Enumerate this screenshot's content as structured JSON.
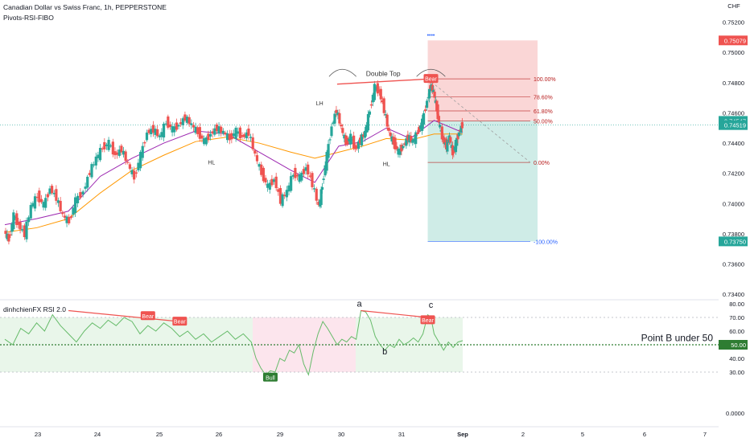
{
  "header": {
    "title": "Canadian Dollar vs Swiss Franc, 1h, PEPPERSTONE",
    "indicator": "Pivots-RSI-FIBO",
    "currency": "CHF"
  },
  "colors": {
    "bull": "#26a69a",
    "bear": "#ef5350",
    "ma_fast": "#9c27b0",
    "ma_slow": "#ff9800",
    "fib": "#b71c1c",
    "target": "#2962ff"
  },
  "chart_data": [
    {
      "type": "candlestick",
      "title": "Canadian Dollar vs Swiss Franc, 1h, PEPPERSTONE",
      "x_ticks": [
        "23",
        "24",
        "25",
        "26",
        "29",
        "30",
        "31",
        "Sep",
        "2",
        "5",
        "6",
        "7"
      ],
      "ylim": [
        0.7338,
        0.7524
      ],
      "y_ticks": [
        "0.75200",
        "0.75000",
        "0.74800",
        "0.74600",
        "0.74400",
        "0.74200",
        "0.74000",
        "0.73800",
        "0.73600",
        "0.73400"
      ],
      "price_labels": {
        "stop": "0.75079",
        "last": "0.74519",
        "hidden": "0.74547",
        "target": "0.73750"
      },
      "stop_level": 0.75079,
      "entry_level": 0.74547,
      "last_price": 0.74519,
      "target_level": 0.7375,
      "series_points": [
        {
          "x": 0,
          "y": 0.7382
        },
        {
          "x": 3,
          "y": 0.7376
        },
        {
          "x": 6,
          "y": 0.7392
        },
        {
          "x": 9,
          "y": 0.7386
        },
        {
          "x": 13,
          "y": 0.738
        },
        {
          "x": 17,
          "y": 0.7398
        },
        {
          "x": 21,
          "y": 0.7405
        },
        {
          "x": 25,
          "y": 0.7399
        },
        {
          "x": 29,
          "y": 0.741
        },
        {
          "x": 33,
          "y": 0.7404
        },
        {
          "x": 37,
          "y": 0.7392
        },
        {
          "x": 41,
          "y": 0.7388
        },
        {
          "x": 45,
          "y": 0.7402
        },
        {
          "x": 50,
          "y": 0.7408
        },
        {
          "x": 54,
          "y": 0.7421
        },
        {
          "x": 58,
          "y": 0.743
        },
        {
          "x": 62,
          "y": 0.7437
        },
        {
          "x": 66,
          "y": 0.744
        },
        {
          "x": 70,
          "y": 0.7432
        },
        {
          "x": 74,
          "y": 0.7436
        },
        {
          "x": 78,
          "y": 0.7426
        },
        {
          "x": 82,
          "y": 0.7417
        },
        {
          "x": 86,
          "y": 0.7432
        },
        {
          "x": 90,
          "y": 0.7447
        },
        {
          "x": 94,
          "y": 0.7449
        },
        {
          "x": 98,
          "y": 0.7444
        },
        {
          "x": 102,
          "y": 0.7454
        },
        {
          "x": 106,
          "y": 0.7449
        },
        {
          "x": 110,
          "y": 0.7452
        },
        {
          "x": 114,
          "y": 0.7457
        },
        {
          "x": 118,
          "y": 0.7452
        },
        {
          "x": 122,
          "y": 0.7447
        },
        {
          "x": 126,
          "y": 0.7441
        },
        {
          "x": 130,
          "y": 0.7446
        },
        {
          "x": 134,
          "y": 0.745
        },
        {
          "x": 138,
          "y": 0.7447
        },
        {
          "x": 142,
          "y": 0.7443
        },
        {
          "x": 146,
          "y": 0.7448
        },
        {
          "x": 150,
          "y": 0.7444
        },
        {
          "x": 154,
          "y": 0.7447
        },
        {
          "x": 158,
          "y": 0.7432
        },
        {
          "x": 162,
          "y": 0.742
        },
        {
          "x": 166,
          "y": 0.7411
        },
        {
          "x": 170,
          "y": 0.7416
        },
        {
          "x": 174,
          "y": 0.7402
        },
        {
          "x": 178,
          "y": 0.7408
        },
        {
          "x": 182,
          "y": 0.742
        },
        {
          "x": 186,
          "y": 0.7417
        },
        {
          "x": 190,
          "y": 0.7424
        },
        {
          "x": 194,
          "y": 0.7413
        },
        {
          "x": 198,
          "y": 0.7398
        },
        {
          "x": 200,
          "y": 0.7412
        },
        {
          "x": 203,
          "y": 0.7432
        },
        {
          "x": 206,
          "y": 0.7451
        },
        {
          "x": 209,
          "y": 0.7462
        },
        {
          "x": 212,
          "y": 0.745
        },
        {
          "x": 215,
          "y": 0.744
        },
        {
          "x": 218,
          "y": 0.7444
        },
        {
          "x": 221,
          "y": 0.7436
        },
        {
          "x": 224,
          "y": 0.7442
        },
        {
          "x": 227,
          "y": 0.7447
        },
        {
          "x": 230,
          "y": 0.7462
        },
        {
          "x": 233,
          "y": 0.7477
        },
        {
          "x": 236,
          "y": 0.7474
        },
        {
          "x": 239,
          "y": 0.7462
        },
        {
          "x": 242,
          "y": 0.7447
        },
        {
          "x": 245,
          "y": 0.744
        },
        {
          "x": 248,
          "y": 0.7434
        },
        {
          "x": 251,
          "y": 0.7438
        },
        {
          "x": 254,
          "y": 0.7444
        },
        {
          "x": 257,
          "y": 0.7441
        },
        {
          "x": 260,
          "y": 0.7447
        },
        {
          "x": 263,
          "y": 0.7454
        },
        {
          "x": 266,
          "y": 0.7468
        },
        {
          "x": 268,
          "y": 0.7478
        },
        {
          "x": 270,
          "y": 0.7474
        },
        {
          "x": 272,
          "y": 0.7462
        },
        {
          "x": 274,
          "y": 0.745
        },
        {
          "x": 276,
          "y": 0.7442
        },
        {
          "x": 278,
          "y": 0.7438
        },
        {
          "x": 280,
          "y": 0.7444
        },
        {
          "x": 282,
          "y": 0.7433
        },
        {
          "x": 284,
          "y": 0.744
        },
        {
          "x": 286,
          "y": 0.7447
        },
        {
          "x": 288,
          "y": 0.7452
        }
      ],
      "ma_fast": [
        {
          "x": 0,
          "y": 0.7386
        },
        {
          "x": 20,
          "y": 0.739
        },
        {
          "x": 40,
          "y": 0.7395
        },
        {
          "x": 60,
          "y": 0.7418
        },
        {
          "x": 80,
          "y": 0.743
        },
        {
          "x": 100,
          "y": 0.744
        },
        {
          "x": 120,
          "y": 0.7448
        },
        {
          "x": 140,
          "y": 0.7446
        },
        {
          "x": 160,
          "y": 0.7434
        },
        {
          "x": 180,
          "y": 0.7422
        },
        {
          "x": 195,
          "y": 0.7414
        },
        {
          "x": 210,
          "y": 0.7438
        },
        {
          "x": 225,
          "y": 0.7441
        },
        {
          "x": 240,
          "y": 0.745
        },
        {
          "x": 255,
          "y": 0.7443
        },
        {
          "x": 270,
          "y": 0.7455
        },
        {
          "x": 288,
          "y": 0.7447
        }
      ],
      "ma_slow": [
        {
          "x": 0,
          "y": 0.7381
        },
        {
          "x": 20,
          "y": 0.7384
        },
        {
          "x": 40,
          "y": 0.739
        },
        {
          "x": 60,
          "y": 0.7407
        },
        {
          "x": 80,
          "y": 0.7422
        },
        {
          "x": 100,
          "y": 0.7432
        },
        {
          "x": 120,
          "y": 0.7441
        },
        {
          "x": 140,
          "y": 0.7444
        },
        {
          "x": 160,
          "y": 0.744
        },
        {
          "x": 180,
          "y": 0.7434
        },
        {
          "x": 195,
          "y": 0.743
        },
        {
          "x": 210,
          "y": 0.7434
        },
        {
          "x": 225,
          "y": 0.7438
        },
        {
          "x": 240,
          "y": 0.7443
        },
        {
          "x": 255,
          "y": 0.7442
        },
        {
          "x": 270,
          "y": 0.7446
        },
        {
          "x": 288,
          "y": 0.7446
        }
      ],
      "fib_levels": [
        {
          "label": "100.00%",
          "value": 0.74825
        },
        {
          "label": "78.60%",
          "value": 0.74705
        },
        {
          "label": "61.80%",
          "value": 0.74613
        },
        {
          "label": "50.00%",
          "value": 0.74547
        },
        {
          "label": "0.00%",
          "value": 0.74272
        },
        {
          "label": "-100.00%",
          "value": 0.7375
        }
      ],
      "annotations": [
        {
          "text": "Double Top"
        },
        {
          "text": "LH"
        },
        {
          "text": "HL"
        },
        {
          "text": "HL"
        }
      ],
      "signals": [
        {
          "text": "Bear"
        }
      ]
    },
    {
      "type": "line",
      "title": "dinhchienFX RSI 2.0",
      "ylim": [
        0,
        80
      ],
      "y_ticks": [
        "80.00",
        "70.00",
        "60.00",
        "40.00",
        "30.00",
        "0.0000"
      ],
      "level_label": "50.00",
      "overbought": 70,
      "midline": 50,
      "oversold": 30,
      "series_points": [
        {
          "x": 0,
          "y": 54
        },
        {
          "x": 5,
          "y": 50
        },
        {
          "x": 10,
          "y": 62
        },
        {
          "x": 15,
          "y": 58
        },
        {
          "x": 20,
          "y": 66
        },
        {
          "x": 25,
          "y": 60
        },
        {
          "x": 30,
          "y": 72
        },
        {
          "x": 35,
          "y": 64
        },
        {
          "x": 40,
          "y": 58
        },
        {
          "x": 45,
          "y": 52
        },
        {
          "x": 50,
          "y": 60
        },
        {
          "x": 55,
          "y": 66
        },
        {
          "x": 60,
          "y": 62
        },
        {
          "x": 65,
          "y": 68
        },
        {
          "x": 70,
          "y": 64
        },
        {
          "x": 75,
          "y": 70
        },
        {
          "x": 80,
          "y": 67
        },
        {
          "x": 85,
          "y": 58
        },
        {
          "x": 90,
          "y": 64
        },
        {
          "x": 95,
          "y": 60
        },
        {
          "x": 100,
          "y": 66
        },
        {
          "x": 105,
          "y": 62
        },
        {
          "x": 110,
          "y": 56
        },
        {
          "x": 115,
          "y": 60
        },
        {
          "x": 120,
          "y": 54
        },
        {
          "x": 125,
          "y": 58
        },
        {
          "x": 130,
          "y": 52
        },
        {
          "x": 135,
          "y": 56
        },
        {
          "x": 140,
          "y": 60
        },
        {
          "x": 145,
          "y": 54
        },
        {
          "x": 150,
          "y": 58
        },
        {
          "x": 155,
          "y": 52
        },
        {
          "x": 158,
          "y": 40
        },
        {
          "x": 161,
          "y": 33
        },
        {
          "x": 164,
          "y": 28
        },
        {
          "x": 167,
          "y": 31
        },
        {
          "x": 170,
          "y": 30
        },
        {
          "x": 173,
          "y": 40
        },
        {
          "x": 176,
          "y": 38
        },
        {
          "x": 179,
          "y": 46
        },
        {
          "x": 182,
          "y": 44
        },
        {
          "x": 185,
          "y": 50
        },
        {
          "x": 188,
          "y": 36
        },
        {
          "x": 191,
          "y": 28
        },
        {
          "x": 194,
          "y": 45
        },
        {
          "x": 197,
          "y": 58
        },
        {
          "x": 200,
          "y": 67
        },
        {
          "x": 203,
          "y": 62
        },
        {
          "x": 206,
          "y": 56
        },
        {
          "x": 209,
          "y": 50
        },
        {
          "x": 212,
          "y": 54
        },
        {
          "x": 215,
          "y": 52
        },
        {
          "x": 218,
          "y": 56
        },
        {
          "x": 221,
          "y": 54
        },
        {
          "x": 224,
          "y": 75
        },
        {
          "x": 227,
          "y": 74
        },
        {
          "x": 230,
          "y": 68
        },
        {
          "x": 233,
          "y": 56
        },
        {
          "x": 236,
          "y": 50
        },
        {
          "x": 239,
          "y": 46
        },
        {
          "x": 242,
          "y": 50
        },
        {
          "x": 245,
          "y": 48
        },
        {
          "x": 248,
          "y": 54
        },
        {
          "x": 251,
          "y": 50
        },
        {
          "x": 254,
          "y": 52
        },
        {
          "x": 257,
          "y": 55
        },
        {
          "x": 260,
          "y": 52
        },
        {
          "x": 263,
          "y": 58
        },
        {
          "x": 266,
          "y": 72
        },
        {
          "x": 268,
          "y": 70
        },
        {
          "x": 270,
          "y": 58
        },
        {
          "x": 273,
          "y": 52
        },
        {
          "x": 276,
          "y": 46
        },
        {
          "x": 279,
          "y": 52
        },
        {
          "x": 282,
          "y": 48
        },
        {
          "x": 285,
          "y": 52
        },
        {
          "x": 288,
          "y": 53
        }
      ],
      "annotations": [
        {
          "text": "a"
        },
        {
          "text": "b"
        },
        {
          "text": "c"
        },
        {
          "text": "Point B under 50"
        }
      ],
      "signals": [
        {
          "text": "Bear"
        },
        {
          "text": "Bear"
        },
        {
          "text": "Bear"
        },
        {
          "text": "Bull"
        }
      ]
    }
  ]
}
